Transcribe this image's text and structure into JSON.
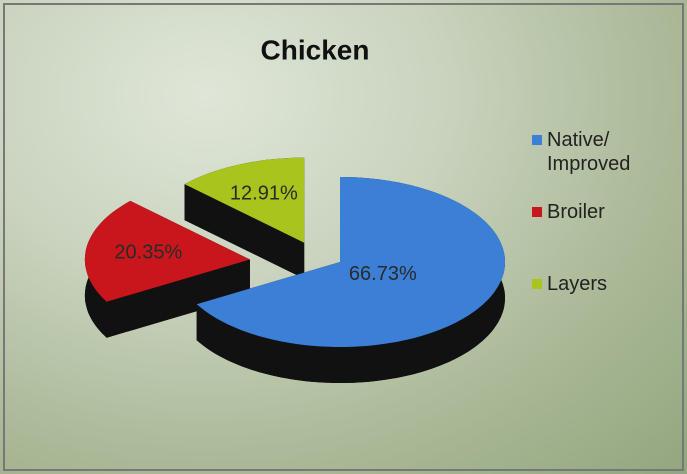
{
  "chart_data": {
    "type": "pie",
    "title": "Chicken",
    "categories": [
      "Native/ Improved",
      "Broiler",
      "Layers"
    ],
    "values": [
      66.73,
      20.35,
      12.91
    ],
    "value_labels": [
      "66.73%",
      "20.35%",
      "12.91%"
    ],
    "colors": [
      "#3b7fd6",
      "#c9161d",
      "#a9c41c"
    ],
    "legend_position": "right"
  }
}
